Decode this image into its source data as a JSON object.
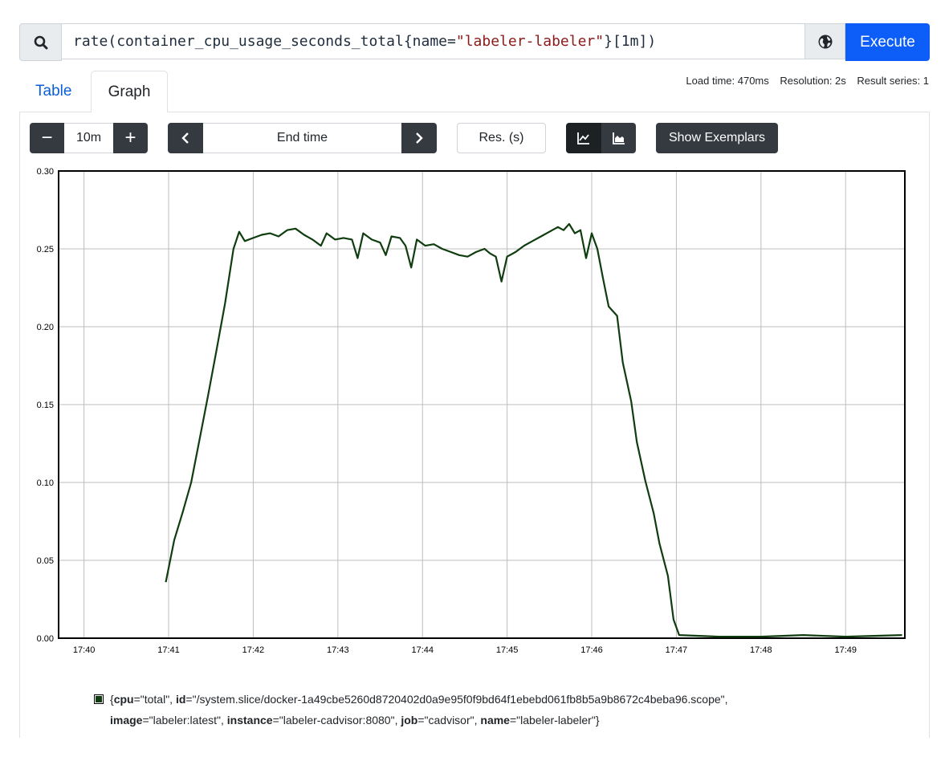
{
  "query": {
    "expression_parts": [
      {
        "text": "rate",
        "kind": "fn"
      },
      {
        "text": "(",
        "kind": "plain"
      },
      {
        "text": "container_cpu_usage_seconds_total",
        "kind": "plain"
      },
      {
        "text": "{",
        "kind": "plain"
      },
      {
        "text": "name",
        "kind": "label"
      },
      {
        "text": "=",
        "kind": "plain"
      },
      {
        "text": "\"labeler-labeler\"",
        "kind": "str"
      },
      {
        "text": "}",
        "kind": "plain"
      },
      {
        "text": "[",
        "kind": "plain"
      },
      {
        "text": "1m",
        "kind": "num"
      },
      {
        "text": "])",
        "kind": "plain"
      }
    ],
    "execute_label": "Execute",
    "search_icon": "search-icon",
    "metrics_explorer_icon": "globe-icon"
  },
  "tabs": {
    "table": "Table",
    "graph": "Graph",
    "active": "graph"
  },
  "meta": {
    "load_time": "Load time: 470ms",
    "resolution": "Resolution: 2s",
    "result_series": "Result series: 1"
  },
  "controls": {
    "range_minus": "−",
    "range_value": "10m",
    "range_plus": "+",
    "end_time_placeholder": "End time",
    "res_placeholder": "Res. (s)",
    "show_exemplars": "Show Exemplars",
    "stacked_mode": "unstacked"
  },
  "chart_data": {
    "type": "line",
    "x_ticks": [
      "17:40",
      "17:41",
      "17:42",
      "17:43",
      "17:44",
      "17:45",
      "17:46",
      "17:47",
      "17:48",
      "17:49"
    ],
    "y_ticks": [
      "0.00",
      "0.05",
      "0.10",
      "0.15",
      "0.20",
      "0.25",
      "0.30"
    ],
    "ylim": [
      0,
      0.3
    ],
    "xlim": [
      "17:39:42",
      "17:49:42"
    ],
    "grid": true,
    "series": [
      {
        "color": "#0f3d0f",
        "points": [
          [
            "17:40:58",
            0.036
          ],
          [
            "17:41:04",
            0.063
          ],
          [
            "17:41:10",
            0.081
          ],
          [
            "17:41:16",
            0.1
          ],
          [
            "17:41:22",
            0.128
          ],
          [
            "17:41:28",
            0.156
          ],
          [
            "17:41:34",
            0.185
          ],
          [
            "17:41:40",
            0.215
          ],
          [
            "17:41:46",
            0.25
          ],
          [
            "17:41:50",
            0.261
          ],
          [
            "17:41:54",
            0.255
          ],
          [
            "17:42:00",
            0.257
          ],
          [
            "17:42:06",
            0.259
          ],
          [
            "17:42:12",
            0.26
          ],
          [
            "17:42:18",
            0.258
          ],
          [
            "17:42:24",
            0.262
          ],
          [
            "17:42:30",
            0.263
          ],
          [
            "17:42:36",
            0.259
          ],
          [
            "17:42:42",
            0.256
          ],
          [
            "17:42:48",
            0.252
          ],
          [
            "17:42:52",
            0.26
          ],
          [
            "17:42:58",
            0.256
          ],
          [
            "17:43:04",
            0.257
          ],
          [
            "17:43:10",
            0.256
          ],
          [
            "17:43:14",
            0.244
          ],
          [
            "17:43:18",
            0.26
          ],
          [
            "17:43:24",
            0.256
          ],
          [
            "17:43:30",
            0.254
          ],
          [
            "17:43:34",
            0.246
          ],
          [
            "17:43:38",
            0.258
          ],
          [
            "17:43:44",
            0.257
          ],
          [
            "17:43:48",
            0.252
          ],
          [
            "17:43:52",
            0.238
          ],
          [
            "17:43:56",
            0.256
          ],
          [
            "17:44:02",
            0.252
          ],
          [
            "17:44:08",
            0.253
          ],
          [
            "17:44:14",
            0.25
          ],
          [
            "17:44:20",
            0.248
          ],
          [
            "17:44:26",
            0.246
          ],
          [
            "17:44:32",
            0.245
          ],
          [
            "17:44:38",
            0.248
          ],
          [
            "17:44:44",
            0.25
          ],
          [
            "17:44:48",
            0.247
          ],
          [
            "17:44:52",
            0.245
          ],
          [
            "17:44:56",
            0.229
          ],
          [
            "17:45:00",
            0.245
          ],
          [
            "17:45:06",
            0.248
          ],
          [
            "17:45:12",
            0.252
          ],
          [
            "17:45:18",
            0.255
          ],
          [
            "17:45:24",
            0.258
          ],
          [
            "17:45:30",
            0.261
          ],
          [
            "17:45:36",
            0.264
          ],
          [
            "17:45:40",
            0.262
          ],
          [
            "17:45:44",
            0.266
          ],
          [
            "17:45:48",
            0.26
          ],
          [
            "17:45:52",
            0.262
          ],
          [
            "17:45:56",
            0.244
          ],
          [
            "17:46:00",
            0.26
          ],
          [
            "17:46:04",
            0.25
          ],
          [
            "17:46:08",
            0.231
          ],
          [
            "17:46:12",
            0.213
          ],
          [
            "17:46:18",
            0.207
          ],
          [
            "17:46:22",
            0.177
          ],
          [
            "17:46:28",
            0.152
          ],
          [
            "17:46:32",
            0.126
          ],
          [
            "17:46:38",
            0.101
          ],
          [
            "17:46:44",
            0.08
          ],
          [
            "17:46:48",
            0.061
          ],
          [
            "17:46:54",
            0.04
          ],
          [
            "17:46:58",
            0.012
          ],
          [
            "17:47:02",
            0.002
          ],
          [
            "17:47:30",
            0.001
          ],
          [
            "17:48:00",
            0.001
          ],
          [
            "17:48:30",
            0.002
          ],
          [
            "17:49:00",
            0.001
          ],
          [
            "17:49:40",
            0.002
          ]
        ]
      }
    ]
  },
  "legend": {
    "entries": [
      {
        "key": "cpu",
        "value": "\"total\""
      },
      {
        "key": "id",
        "value": "\"/system.slice/docker-1a49cbe5260d8720402d0a9e95f0f9bd64f1ebebd061fb8b5a9b8672c4beba96.scope\""
      },
      {
        "key": "image",
        "value": "\"labeler:latest\""
      },
      {
        "key": "instance",
        "value": "\"labeler-cadvisor:8080\""
      },
      {
        "key": "job",
        "value": "\"cadvisor\""
      },
      {
        "key": "name",
        "value": "\"labeler-labeler\""
      }
    ]
  }
}
